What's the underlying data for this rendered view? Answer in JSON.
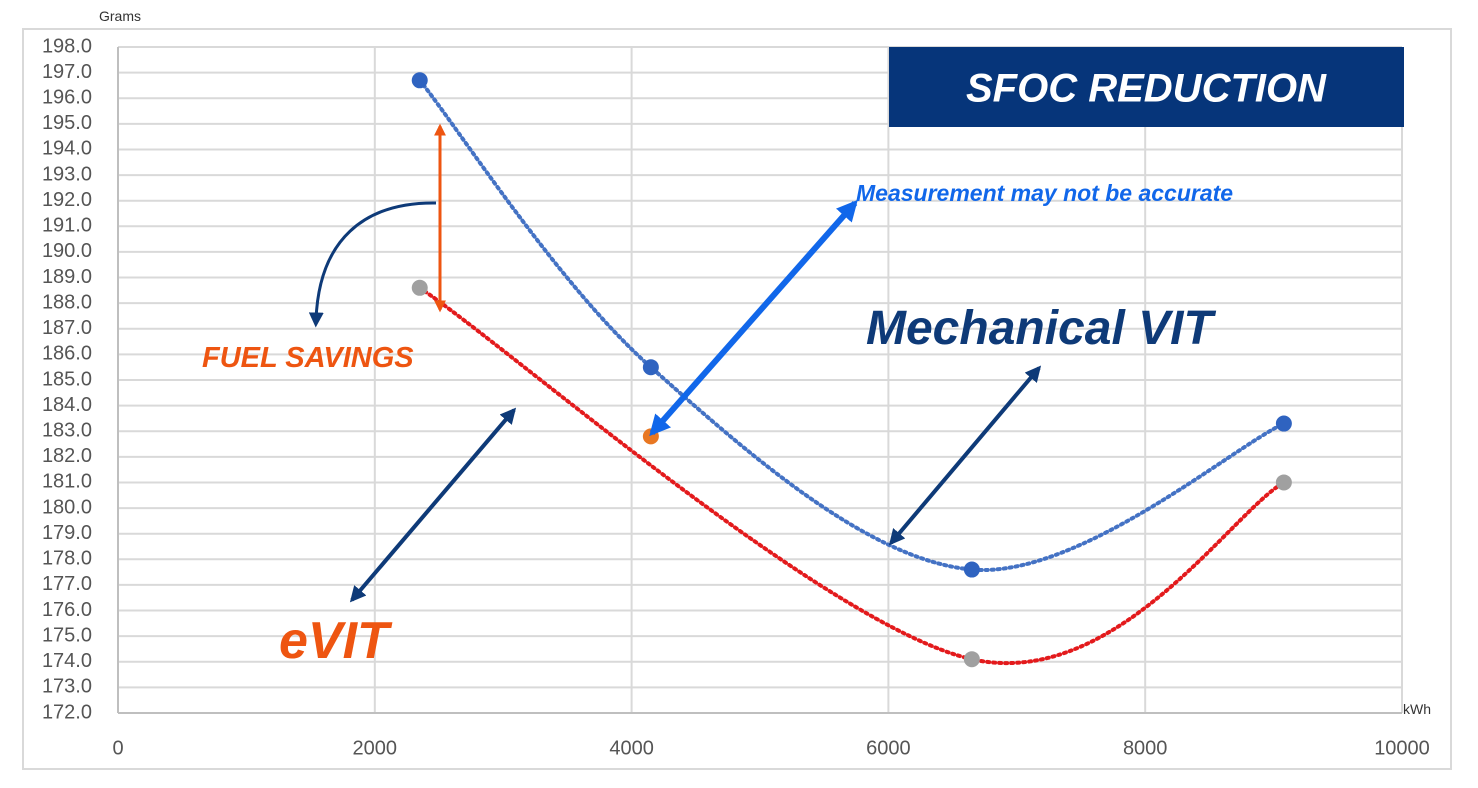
{
  "chart_data": {
    "type": "scatter",
    "title": "SFOC REDUCTION",
    "ylabel": "Grams",
    "xlabel": "kWh",
    "xlim": [
      0,
      10000
    ],
    "ylim": [
      172.0,
      198.0
    ],
    "x_ticks": [
      0,
      2000,
      4000,
      6000,
      8000,
      10000
    ],
    "y_ticks": [
      172.0,
      173.0,
      174.0,
      175.0,
      176.0,
      177.0,
      178.0,
      179.0,
      180.0,
      181.0,
      182.0,
      183.0,
      184.0,
      185.0,
      186.0,
      187.0,
      188.0,
      189.0,
      190.0,
      191.0,
      192.0,
      193.0,
      194.0,
      195.0,
      196.0,
      197.0,
      198.0
    ],
    "grid": true,
    "series": [
      {
        "name": "Mechanical VIT",
        "color": "#4472c4",
        "marker_color": "#2f63c0",
        "points": [
          [
            2350,
            196.7
          ],
          [
            4150,
            185.5
          ],
          [
            6650,
            177.6
          ],
          [
            9080,
            183.3
          ]
        ]
      },
      {
        "name": "eVIT",
        "color": "#e31a1c",
        "marker_color": "#a0a0a0",
        "points": [
          [
            2350,
            188.6
          ],
          [
            6650,
            174.1
          ],
          [
            9080,
            181.0
          ]
        ]
      },
      {
        "name": "Measurement",
        "marker_color": "#e87722",
        "points": [
          [
            4150,
            182.8
          ]
        ]
      }
    ],
    "annotations": {
      "fuel_savings": "FUEL SAVINGS",
      "evit": "eVIT",
      "mechanical_vit": "Mechanical VIT",
      "measurement_note": "Measurement may not be accurate"
    },
    "colors": {
      "orange": "#ee5511",
      "navy": "#0e3a78",
      "bright_blue": "#1167ea",
      "title_bg": "#06357a"
    }
  }
}
